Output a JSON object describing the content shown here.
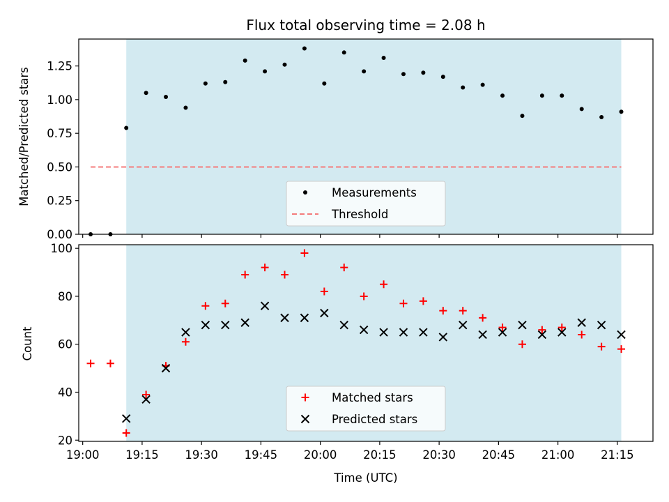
{
  "chart_data": [
    {
      "type": "scatter",
      "title": "Flux total observing time = 2.08 h",
      "ylabel": "Matched/Predicted stars",
      "xlabel": "",
      "xlim": [
        "18:59:00",
        "21:24:00"
      ],
      "ylim": [
        0,
        1.45
      ],
      "yticks": [
        "0.00",
        "0.25",
        "0.50",
        "0.75",
        "1.00",
        "1.25"
      ],
      "shaded_span": {
        "start": "19:11:00",
        "end": "21:16:00",
        "color": "#d3eaf1"
      },
      "threshold": {
        "name": "Threshold",
        "value": 0.5,
        "x_start": "19:02:00",
        "x_end": "21:16:00",
        "color": "#f47b7b",
        "style": "dashed"
      },
      "series": [
        {
          "name": "Measurements",
          "color": "#000000",
          "marker": "dot",
          "x": [
            "19:02",
            "19:07",
            "19:11",
            "19:16",
            "19:21",
            "19:26",
            "19:31",
            "19:36",
            "19:41",
            "19:46",
            "19:51",
            "19:56",
            "20:01",
            "20:06",
            "20:11",
            "20:16",
            "20:21",
            "20:26",
            "20:31",
            "20:36",
            "20:41",
            "20:46",
            "20:51",
            "20:56",
            "21:01",
            "21:06",
            "21:11",
            "21:16"
          ],
          "values": [
            0.0,
            0.0,
            0.79,
            1.05,
            1.02,
            0.94,
            1.12,
            1.13,
            1.29,
            1.21,
            1.26,
            1.38,
            1.12,
            1.35,
            1.21,
            1.31,
            1.19,
            1.2,
            1.17,
            1.09,
            1.11,
            1.03,
            0.88,
            1.03,
            1.03,
            0.93,
            0.87,
            0.91
          ]
        }
      ],
      "legend": {
        "position": "bottom-center",
        "entries": [
          "Measurements",
          "Threshold"
        ]
      }
    },
    {
      "type": "scatter",
      "title": "",
      "ylabel": "Count",
      "xlabel": "Time (UTC)",
      "xlim": [
        "18:59:00",
        "21:24:00"
      ],
      "ylim": [
        19.5,
        101.5
      ],
      "yticks": [
        "20",
        "40",
        "60",
        "80",
        "100"
      ],
      "xticks": [
        "19:00",
        "19:15",
        "19:30",
        "19:45",
        "20:00",
        "20:15",
        "20:30",
        "20:45",
        "21:00",
        "21:15"
      ],
      "shaded_span": {
        "start": "19:11:00",
        "end": "21:16:00",
        "color": "#d3eaf1"
      },
      "series": [
        {
          "name": "Matched stars",
          "color": "#ff0000",
          "marker": "plus",
          "x": [
            "19:02",
            "19:07",
            "19:11",
            "19:16",
            "19:21",
            "19:26",
            "19:31",
            "19:36",
            "19:41",
            "19:46",
            "19:51",
            "19:56",
            "20:01",
            "20:06",
            "20:11",
            "20:16",
            "20:21",
            "20:26",
            "20:31",
            "20:36",
            "20:41",
            "20:46",
            "20:51",
            "20:56",
            "21:01",
            "21:06",
            "21:11",
            "21:16"
          ],
          "values": [
            52,
            52,
            23,
            39,
            51,
            61,
            76,
            77,
            89,
            92,
            89,
            98,
            82,
            92,
            80,
            85,
            77,
            78,
            74,
            74,
            71,
            67,
            60,
            66,
            67,
            64,
            59,
            58
          ]
        },
        {
          "name": "Predicted stars",
          "color": "#000000",
          "marker": "x",
          "x": [
            "19:11",
            "19:16",
            "19:21",
            "19:26",
            "19:31",
            "19:36",
            "19:41",
            "19:46",
            "19:51",
            "19:56",
            "20:01",
            "20:06",
            "20:11",
            "20:16",
            "20:21",
            "20:26",
            "20:31",
            "20:36",
            "20:41",
            "20:46",
            "20:51",
            "20:56",
            "21:01",
            "21:06",
            "21:11",
            "21:16"
          ],
          "values": [
            29,
            37,
            50,
            65,
            68,
            68,
            69,
            76,
            71,
            71,
            73,
            68,
            66,
            65,
            65,
            65,
            63,
            68,
            64,
            65,
            68,
            64,
            65,
            69,
            68,
            64
          ]
        }
      ],
      "legend": {
        "position": "bottom-center",
        "entries": [
          "Matched stars",
          "Predicted stars"
        ]
      }
    }
  ]
}
